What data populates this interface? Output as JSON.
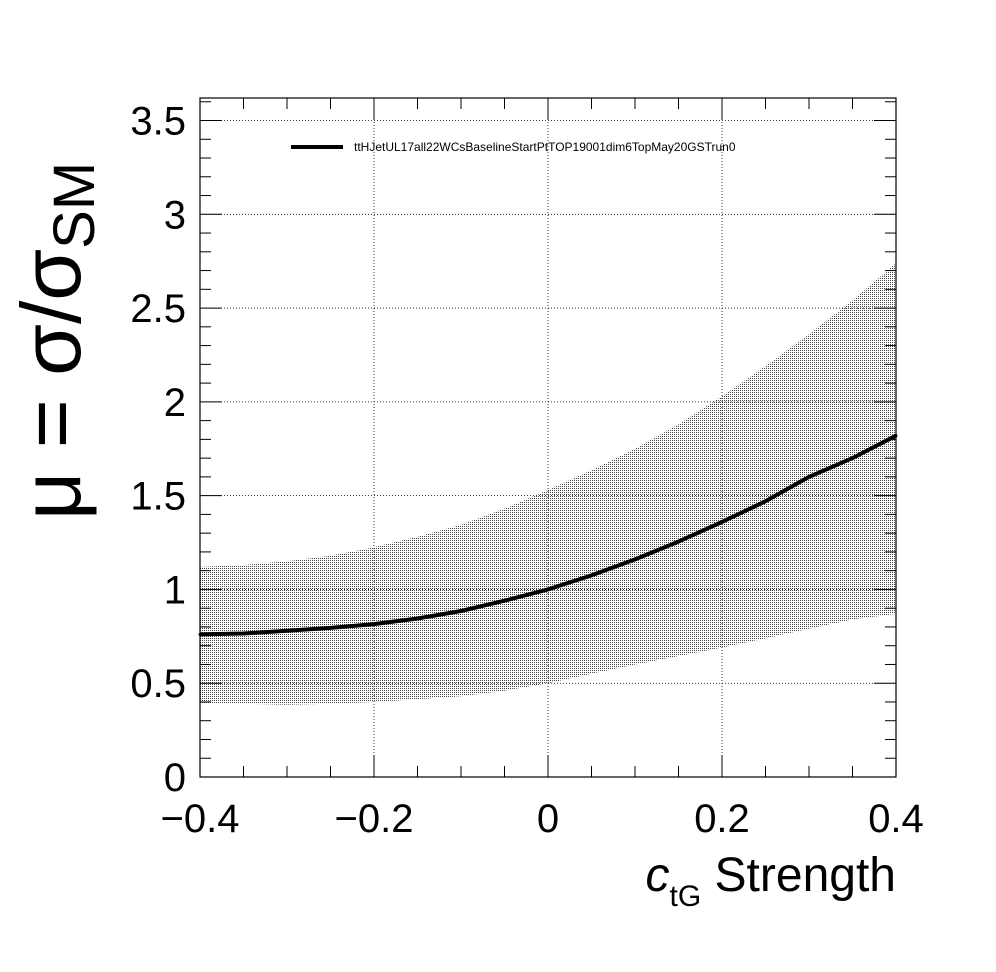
{
  "chart_data": {
    "type": "line",
    "title": "",
    "xlabel": {
      "symbol": "c",
      "subscript": "tG",
      "suffix": " Strength"
    },
    "ylabel": {
      "prefix": "μ = σ/σ",
      "subscript": "SM"
    },
    "xlim": [
      -0.4,
      0.4
    ],
    "ylim": [
      0,
      3.62
    ],
    "x_major_ticks": [
      -0.4,
      -0.2,
      0,
      0.2,
      0.4
    ],
    "x_tick_labels": [
      "−0.4",
      "−0.2",
      "0",
      "0.2",
      "0.4"
    ],
    "y_major_ticks": [
      0,
      0.5,
      1,
      1.5,
      2,
      2.5,
      3,
      3.5
    ],
    "y_tick_labels": [
      "0",
      "0.5",
      "1",
      "1.5",
      "2",
      "2.5",
      "3",
      "3.5"
    ],
    "grid": true,
    "legend": {
      "placement": "top-left",
      "entries": [
        "ttHJetUL17all22WCsBaselineStartPtTOP19001dim6TopMay20GSTrun0"
      ]
    },
    "series": [
      {
        "name": "ttHJetUL17all22WCsBaselineStartPtTOP19001dim6TopMay20GSTrun0",
        "color": "#000000",
        "x": [
          -0.4,
          -0.35,
          -0.3,
          -0.25,
          -0.2,
          -0.15,
          -0.1,
          -0.05,
          0.0,
          0.05,
          0.1,
          0.15,
          0.2,
          0.25,
          0.3,
          0.35,
          0.4
        ],
        "y": [
          0.76,
          0.765,
          0.78,
          0.795,
          0.815,
          0.845,
          0.885,
          0.94,
          1.0,
          1.075,
          1.16,
          1.255,
          1.36,
          1.47,
          1.6,
          1.7,
          1.82
        ],
        "band_lower": [
          0.39,
          0.39,
          0.385,
          0.39,
          0.4,
          0.415,
          0.43,
          0.46,
          0.5,
          0.55,
          0.6,
          0.645,
          0.69,
          0.74,
          0.79,
          0.84,
          0.87
        ],
        "band_upper": [
          1.12,
          1.13,
          1.15,
          1.18,
          1.225,
          1.28,
          1.345,
          1.43,
          1.53,
          1.635,
          1.75,
          1.88,
          2.03,
          2.19,
          2.36,
          2.54,
          2.74
        ]
      }
    ]
  }
}
